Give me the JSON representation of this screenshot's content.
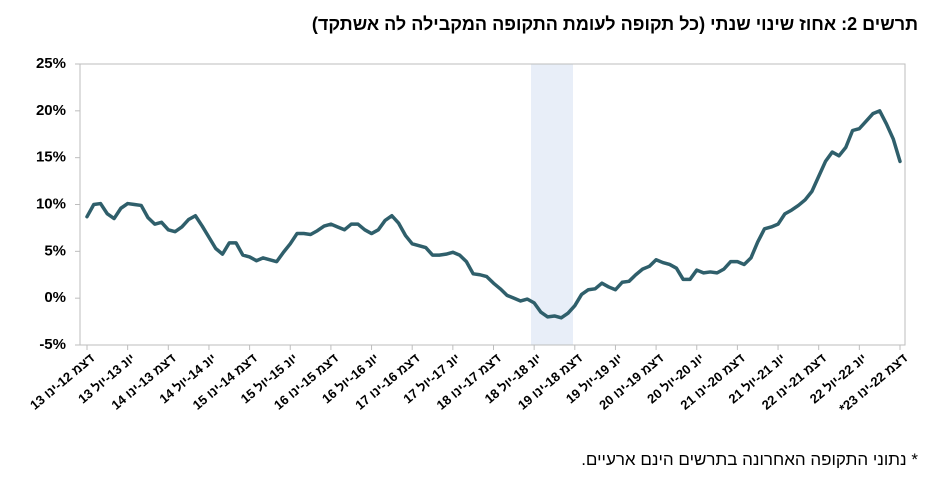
{
  "chart_data": {
    "type": "line",
    "title": "תרשים 2: אחוז שינוי שנתי (כל תקופה לעומת התקופה המקבילה לה אשתקד)",
    "note": "* נתוני התקופה האחרונה בתרשים הינם ארעיים.",
    "categories": [
      "דצמ 12-ינו 13",
      null,
      null,
      null,
      null,
      null,
      "יונ 13-יול 13",
      null,
      null,
      null,
      null,
      null,
      "דצמ 13-ינו 14",
      null,
      null,
      null,
      null,
      null,
      "יונ 14-יול 14",
      null,
      null,
      null,
      null,
      null,
      "דצמ 14-ינו 15",
      null,
      null,
      null,
      null,
      null,
      "יונ 15-יול 15",
      null,
      null,
      null,
      null,
      null,
      "דצמ 15-ינו 16",
      null,
      null,
      null,
      null,
      null,
      "יונ 16-יול 16",
      null,
      null,
      null,
      null,
      null,
      "דצמ 16-ינו 17",
      null,
      null,
      null,
      null,
      null,
      "יונ 17-יול 17",
      null,
      null,
      null,
      null,
      null,
      "דצמ 17-ינו 18",
      null,
      null,
      null,
      null,
      null,
      "יונ 18-יול 18",
      null,
      null,
      null,
      null,
      null,
      "דצמ 18-ינו 19",
      null,
      null,
      null,
      null,
      null,
      "יונ 19-יול 19",
      null,
      null,
      null,
      null,
      null,
      "דצמ 19-ינו 20",
      null,
      null,
      null,
      null,
      null,
      "יונ 20-יול 20",
      null,
      null,
      null,
      null,
      null,
      "דצמ 20-ינו 21",
      null,
      null,
      null,
      null,
      null,
      "יונ 21-יול 21",
      null,
      null,
      null,
      null,
      null,
      "דצמ 21-ינו 22",
      null,
      null,
      null,
      null,
      null,
      "יונ 22-יול 22",
      null,
      null,
      null,
      null,
      null,
      "דצמ 22-ינו 23*"
    ],
    "values": [
      8.7,
      10.0,
      10.1,
      9.0,
      8.5,
      9.6,
      10.1,
      10.0,
      9.9,
      8.6,
      7.9,
      8.1,
      7.3,
      7.1,
      7.6,
      8.4,
      8.8,
      7.7,
      6.5,
      5.3,
      4.7,
      5.9,
      5.9,
      4.6,
      4.4,
      4.0,
      4.3,
      4.1,
      3.9,
      4.9,
      5.8,
      6.9,
      6.9,
      6.8,
      7.2,
      7.7,
      7.9,
      7.6,
      7.3,
      7.9,
      7.9,
      7.3,
      6.9,
      7.3,
      8.3,
      8.8,
      8.0,
      6.7,
      5.8,
      5.6,
      5.4,
      4.6,
      4.6,
      4.7,
      4.9,
      4.6,
      3.9,
      2.6,
      2.5,
      2.3,
      1.6,
      1.0,
      0.3,
      0.0,
      -0.3,
      -0.1,
      -0.5,
      -1.5,
      -2.0,
      -1.9,
      -2.1,
      -1.6,
      -0.8,
      0.4,
      0.9,
      1.0,
      1.6,
      1.2,
      0.9,
      1.7,
      1.8,
      2.5,
      3.1,
      3.4,
      4.1,
      3.8,
      3.6,
      3.2,
      2.0,
      2.0,
      3.0,
      2.7,
      2.8,
      2.7,
      3.1,
      3.9,
      3.9,
      3.6,
      4.3,
      6.0,
      7.4,
      7.6,
      7.9,
      9.0,
      9.4,
      9.9,
      10.5,
      11.4,
      13.0,
      14.6,
      15.6,
      15.2,
      16.1,
      17.9,
      18.1,
      18.9,
      19.7,
      20.0,
      18.6,
      17.0,
      14.6
    ],
    "color": "#2f5f6b",
    "ylim": [
      -5,
      25
    ],
    "yticks": [
      {
        "value": -5,
        "label": "-5%"
      },
      {
        "value": 0,
        "label": "0%"
      },
      {
        "value": 5,
        "label": "5%"
      },
      {
        "value": 10,
        "label": "10%"
      },
      {
        "value": 15,
        "label": "15%"
      },
      {
        "value": 20,
        "label": "20%"
      },
      {
        "value": 25,
        "label": "25%"
      }
    ],
    "grid": false
  }
}
